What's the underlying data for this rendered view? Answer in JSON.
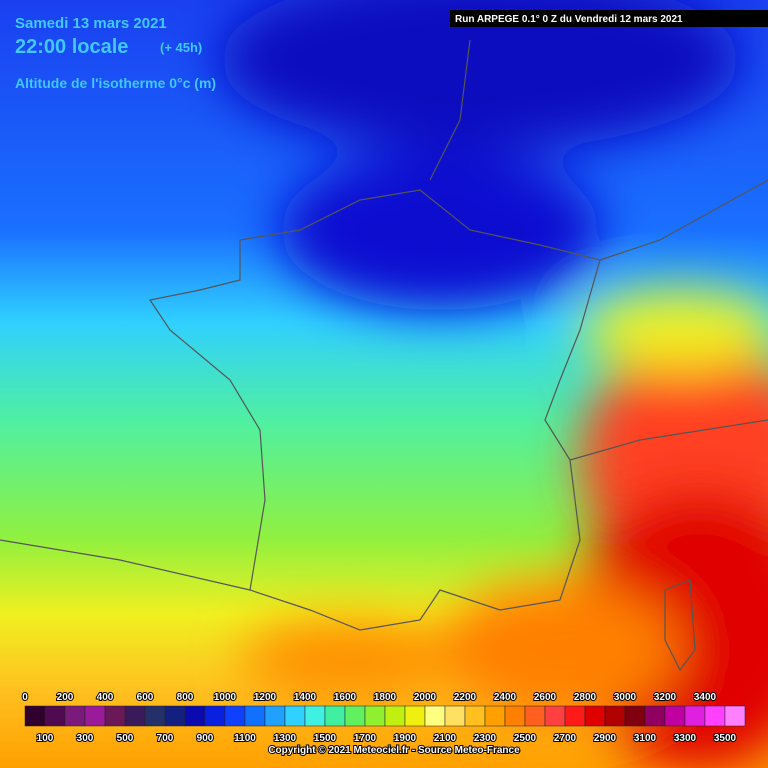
{
  "header": {
    "date": "Samedi 13 mars 2021",
    "time": "22:00 locale",
    "lead": "(+ 45h)",
    "parameter": "Altitude de l'isotherme 0°c (m)",
    "run": "Run ARPEGE 0.1° 0 Z du Vendredi 12 mars 2021"
  },
  "legend": {
    "items": [
      {
        "label": "0",
        "color": "#30002f"
      },
      {
        "label": "100",
        "color": "#500a50"
      },
      {
        "label": "200",
        "color": "#7a1a7a"
      },
      {
        "label": "300",
        "color": "#9a1a9a"
      },
      {
        "label": "400",
        "color": "#6a1858"
      },
      {
        "label": "500",
        "color": "#3a1a5a"
      },
      {
        "label": "600",
        "color": "#23306a"
      },
      {
        "label": "700",
        "color": "#142080"
      },
      {
        "label": "800",
        "color": "#0a0ab0"
      },
      {
        "label": "900",
        "color": "#0a20e0"
      },
      {
        "label": "1000",
        "color": "#1040ff"
      },
      {
        "label": "1100",
        "color": "#1070ff"
      },
      {
        "label": "1200",
        "color": "#20a0ff"
      },
      {
        "label": "1300",
        "color": "#30d0ff"
      },
      {
        "label": "1400",
        "color": "#40f0e0"
      },
      {
        "label": "1500",
        "color": "#40f0a0"
      },
      {
        "label": "1600",
        "color": "#60f060"
      },
      {
        "label": "1700",
        "color": "#90f030"
      },
      {
        "label": "1800",
        "color": "#c0f010"
      },
      {
        "label": "1900",
        "color": "#f0f010"
      },
      {
        "label": "2000",
        "color": "#ffff80"
      },
      {
        "label": "2100",
        "color": "#ffe060"
      },
      {
        "label": "2200",
        "color": "#ffc020"
      },
      {
        "label": "2300",
        "color": "#ffa000"
      },
      {
        "label": "2400",
        "color": "#ff8000"
      },
      {
        "label": "2500",
        "color": "#ff6020"
      },
      {
        "label": "2600",
        "color": "#ff4040"
      },
      {
        "label": "2700",
        "color": "#ff1a1a"
      },
      {
        "label": "2800",
        "color": "#e00000"
      },
      {
        "label": "2900",
        "color": "#b00000"
      },
      {
        "label": "3000",
        "color": "#800010"
      },
      {
        "label": "3100",
        "color": "#900060"
      },
      {
        "label": "3200",
        "color": "#c000a0"
      },
      {
        "label": "3300",
        "color": "#e020e0"
      },
      {
        "label": "3400",
        "color": "#ff40ff"
      },
      {
        "label": "3500",
        "color": "#ff80ff"
      }
    ]
  },
  "footer": {
    "copyright": "Copyright © 2021 Meteociel.fr - Source Meteo-France"
  }
}
